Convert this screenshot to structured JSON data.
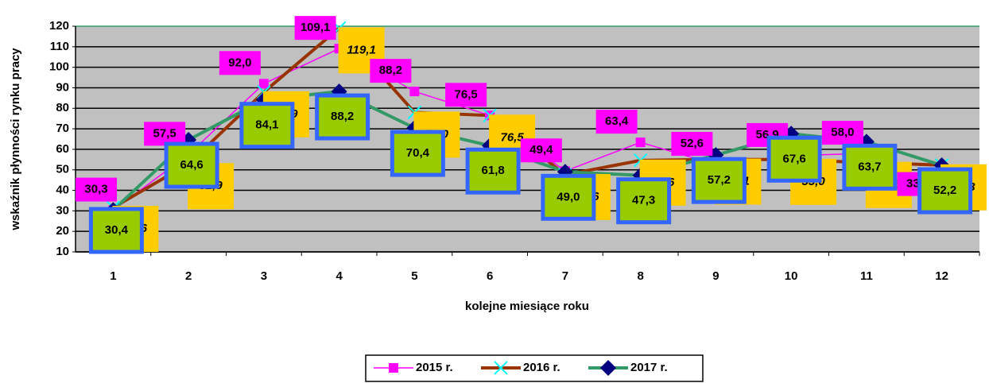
{
  "chart_data": {
    "type": "line",
    "y_label": "wskaźnik płynności rynku pracy",
    "x_label": "kolejne miesiące roku",
    "categories": [
      "1",
      "2",
      "3",
      "4",
      "5",
      "6",
      "7",
      "8",
      "9",
      "10",
      "11",
      "12"
    ],
    "ylim": [
      10,
      120
    ],
    "yticks": [
      10,
      20,
      30,
      40,
      50,
      60,
      70,
      80,
      90,
      100,
      110,
      120
    ],
    "grid": true,
    "series": [
      {
        "name": "2015 r.",
        "color": "#ff00ff",
        "values": [
          30.3,
          57.5,
          92.0,
          109.1,
          88.2,
          76.5,
          49.4,
          63.4,
          52.6,
          56.9,
          58.0,
          33.0
        ],
        "value_labels": [
          "30,3",
          "57,5",
          "92,0",
          "109,1",
          "88,2",
          "76,5",
          "49,4",
          "63,4",
          "52,6",
          "56,9",
          "58,0",
          "33,0"
        ]
      },
      {
        "name": "2016 r.",
        "color": "#993300",
        "values": [
          31.6,
          52.9,
          87.9,
          119.1,
          78.0,
          76.5,
          47.6,
          54.6,
          55.1,
          55.0,
          53.5,
          52.3
        ],
        "value_labels": [
          "31,6",
          "52,9",
          "87,9",
          "119,1",
          "78,0",
          "76,5",
          "47,6",
          "54,6",
          "55,1",
          "55,0",
          "53,5",
          "52,3"
        ]
      },
      {
        "name": "2017 r.",
        "color": "#339966",
        "values": [
          30.4,
          64.6,
          84.1,
          88.2,
          70.4,
          61.8,
          49.0,
          47.3,
          57.2,
          67.6,
          63.7,
          52.2
        ],
        "value_labels": [
          "30,4",
          "64,6",
          "84,1",
          "88,2",
          "70,4",
          "61,8",
          "49,0",
          "47,3",
          "57,2",
          "67,6",
          "63,7",
          "52,2"
        ]
      }
    ]
  }
}
